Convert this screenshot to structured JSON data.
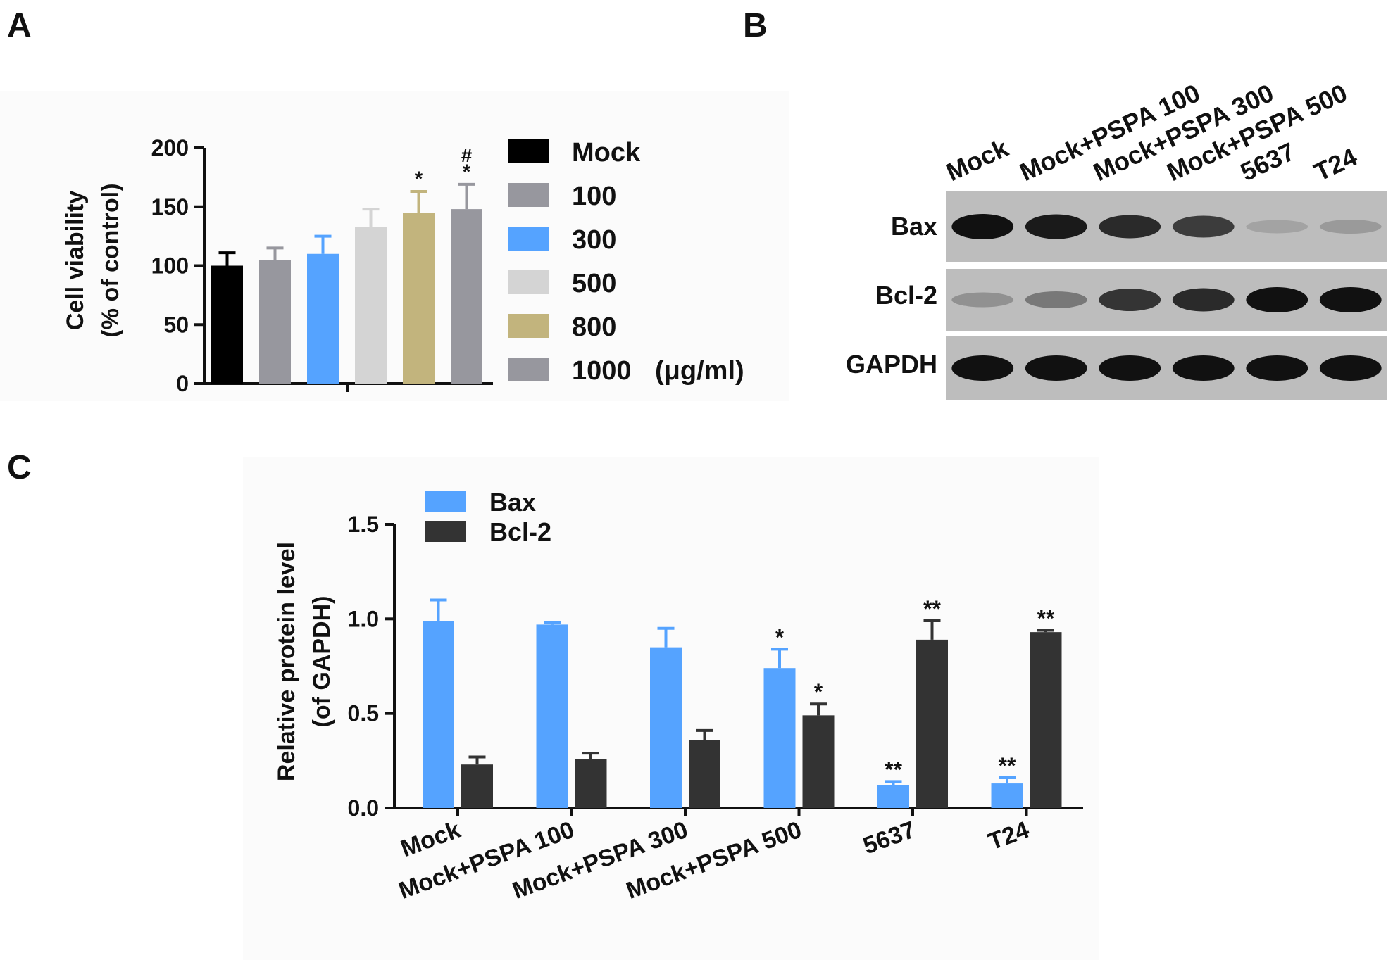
{
  "panels": [
    {
      "letter": "A"
    },
    {
      "letter": "B"
    },
    {
      "letter": "C"
    }
  ],
  "chart_data": [
    {
      "type": "bar",
      "panel": "A",
      "ylabel": "Cell viability",
      "ylabel2": "(% of control)",
      "ylim": [
        0,
        200
      ],
      "yticks": [
        "0",
        "50",
        "100",
        "150",
        "200"
      ],
      "categories": [
        "Mock",
        "100",
        "300",
        "500",
        "800",
        "1000"
      ],
      "values": [
        100,
        105,
        110,
        133,
        145,
        148
      ],
      "errors": [
        11,
        10,
        15,
        15,
        18,
        21
      ],
      "colors": [
        "#000000",
        "#97979e",
        "#55a3ff",
        "#d4d4d4",
        "#c2b47d",
        "#97979e"
      ],
      "annotations": [
        "",
        "",
        "",
        "",
        "*",
        "*"
      ],
      "annotations2": [
        "",
        "",
        "",
        "",
        "",
        "#"
      ],
      "legend": [
        "Mock",
        "100",
        "300",
        "500",
        "800",
        "1000"
      ],
      "legend_unit": "(μg/ml)",
      "legend_position": "right"
    },
    {
      "type": "table",
      "panel": "B",
      "lanes": [
        "Mock",
        "Mock+PSPA 100",
        "Mock+PSPA 300",
        "Mock+PSPA 500",
        "5637",
        "T24"
      ],
      "rows": [
        {
          "label": "Bax",
          "intensity": [
            1.0,
            0.95,
            0.85,
            0.75,
            0.15,
            0.2
          ]
        },
        {
          "label": "Bcl-2",
          "intensity": [
            0.25,
            0.4,
            0.8,
            0.85,
            1.0,
            1.0
          ]
        },
        {
          "label": "GAPDH",
          "intensity": [
            1.0,
            1.0,
            1.0,
            1.0,
            1.0,
            1.0
          ]
        }
      ]
    },
    {
      "type": "bar",
      "panel": "C",
      "ylabel": "Relative protein level",
      "ylabel2": "(of GAPDH)",
      "ylim": [
        0,
        1.5
      ],
      "yticks": [
        "0.0",
        "0.5",
        "1.0",
        "1.5"
      ],
      "categories": [
        "Mock",
        "Mock+PSPA 100",
        "Mock+PSPA 300",
        "Mock+PSPA 500",
        "5637",
        "T24"
      ],
      "series": [
        {
          "name": "Bax",
          "color": "#55a3ff",
          "values": [
            0.99,
            0.97,
            0.85,
            0.74,
            0.12,
            0.13
          ],
          "errors": [
            0.11,
            0.01,
            0.1,
            0.1,
            0.02,
            0.03
          ],
          "annotations": [
            "",
            "",
            "",
            "*",
            "**",
            "**"
          ]
        },
        {
          "name": "Bcl-2",
          "color": "#333333",
          "values": [
            0.23,
            0.26,
            0.36,
            0.49,
            0.89,
            0.93
          ],
          "errors": [
            0.04,
            0.03,
            0.05,
            0.06,
            0.1,
            0.01
          ],
          "annotations": [
            "",
            "",
            "",
            "*",
            "**",
            "**"
          ]
        }
      ],
      "legend_position": "top-left"
    }
  ]
}
